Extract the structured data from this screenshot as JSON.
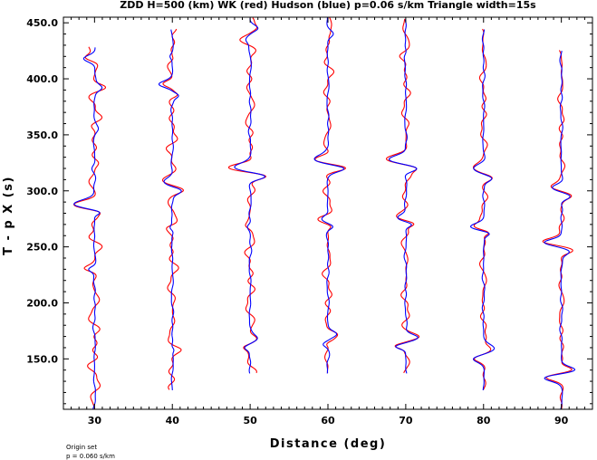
{
  "chart_data": {
    "type": "line",
    "title": "ZDD H=500 (km) WK (red) Hudson (blue) p=0.06 s/km Triangle width=15s",
    "xlabel": "Distance (deg)",
    "ylabel": "T - p X (s)",
    "xlim": [
      26,
      94
    ],
    "ylim": [
      105,
      455
    ],
    "x_ticks": [
      30,
      40,
      50,
      60,
      70,
      80,
      90
    ],
    "x_tick_labels": [
      "30",
      "40",
      "50",
      "60",
      "70",
      "80",
      "90"
    ],
    "y_ticks": [
      150,
      200,
      250,
      300,
      350,
      400,
      450
    ],
    "y_tick_labels": [
      "150.0",
      "200.0",
      "250.0",
      "300.0",
      "350.0",
      "400.0",
      "450.0"
    ],
    "footnote_lines": [
      "Origin set",
      "p = 0.060 s/km"
    ],
    "series_colors": {
      "WK": "#ff0000",
      "Hudson": "#0000ff"
    },
    "traces": [
      {
        "distance": 30,
        "t_start": 105,
        "t_end": 428,
        "pulses": [
          [
            288,
            -4.5,
            5
          ],
          [
            281,
            1.5,
            3
          ],
          [
            392,
            1.8,
            4
          ],
          [
            418,
            -2.0,
            4
          ],
          [
            230,
            -1.2,
            3
          ],
          [
            320,
            -0.5,
            4
          ],
          [
            355,
            0.6,
            4
          ]
        ],
        "red_noise": 1.2,
        "blue_noise": 0.25
      },
      {
        "distance": 40,
        "t_start": 122,
        "t_end": 444,
        "pulses": [
          [
            308,
            -2.0,
            5
          ],
          [
            300,
            2.2,
            4
          ],
          [
            395,
            -2.8,
            4
          ],
          [
            385,
            1.2,
            3
          ],
          [
            267,
            -0.8,
            3
          ],
          [
            158,
            0.6,
            3
          ],
          [
            420,
            -0.5,
            3
          ]
        ],
        "red_noise": 1.0,
        "blue_noise": 0.25
      },
      {
        "distance": 50,
        "t_start": 137,
        "t_end": 454,
        "pulses": [
          [
            321,
            -3.5,
            5
          ],
          [
            313,
            3.5,
            4
          ],
          [
            168,
            1.5,
            4
          ],
          [
            160,
            -1.2,
            3
          ],
          [
            445,
            1.6,
            4
          ],
          [
            435,
            -1.0,
            4
          ],
          [
            268,
            -0.5,
            3
          ]
        ],
        "red_noise": 1.0,
        "blue_noise": 0.25
      },
      {
        "distance": 60,
        "t_start": 137,
        "t_end": 458,
        "pulses": [
          [
            328,
            -3.0,
            5
          ],
          [
            320,
            3.5,
            4
          ],
          [
            275,
            -1.5,
            4
          ],
          [
            268,
            1.0,
            3
          ],
          [
            172,
            2.0,
            4
          ],
          [
            163,
            -1.0,
            3
          ],
          [
            440,
            0.8,
            4
          ]
        ],
        "red_noise": 0.9,
        "blue_noise": 0.25
      },
      {
        "distance": 70,
        "t_start": 137,
        "t_end": 453,
        "pulses": [
          [
            328,
            -3.5,
            5
          ],
          [
            320,
            2.6,
            4
          ],
          [
            276,
            -1.8,
            4
          ],
          [
            270,
            1.4,
            3
          ],
          [
            169,
            2.8,
            4
          ],
          [
            161,
            -2.2,
            3
          ],
          [
            420,
            -0.6,
            4
          ]
        ],
        "red_noise": 0.8,
        "blue_noise": 0.25
      },
      {
        "distance": 80,
        "t_start": 122,
        "t_end": 444,
        "pulses": [
          [
            320,
            -2.0,
            5
          ],
          [
            311,
            2.0,
            4
          ],
          [
            268,
            -2.5,
            4
          ],
          [
            262,
            1.4,
            3
          ],
          [
            159,
            2.2,
            5
          ],
          [
            150,
            -2.0,
            4
          ]
        ],
        "red_noise": 0.7,
        "blue_noise": 0.25
      },
      {
        "distance": 90,
        "t_start": 105,
        "t_end": 425,
        "pulses": [
          [
            303,
            -1.8,
            4
          ],
          [
            295,
            2.0,
            4
          ],
          [
            254,
            -3.5,
            4
          ],
          [
            246,
            1.8,
            4
          ],
          [
            140,
            3.0,
            4
          ],
          [
            133,
            -3.5,
            4
          ]
        ],
        "red_noise": 0.6,
        "blue_noise": 0.25
      }
    ]
  }
}
